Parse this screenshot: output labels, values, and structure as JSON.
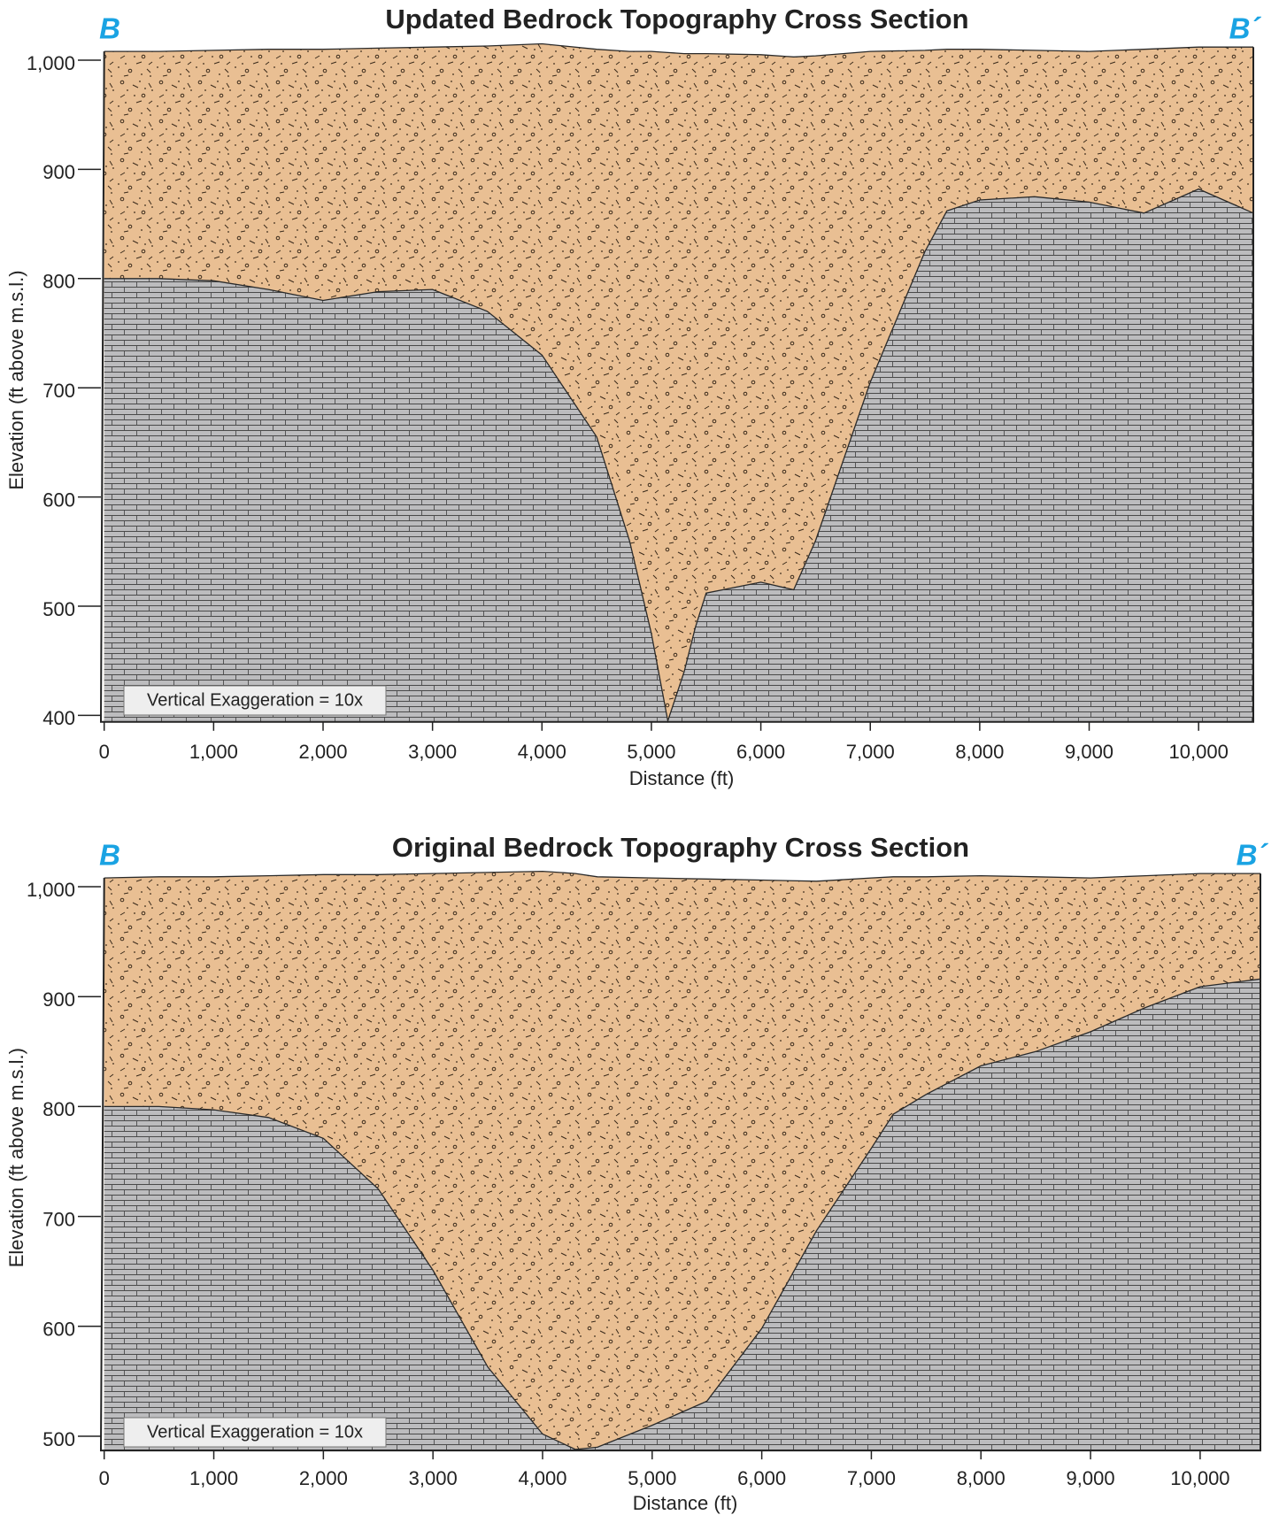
{
  "chart_data": [
    {
      "type": "cross-section",
      "title": "Updated Bedrock Topography Cross Section",
      "left_label": "B",
      "right_label": "B´",
      "annotation": "Vertical Exaggeration = 10x",
      "xlabel": "Distance (ft)",
      "ylabel": "Elevation (ft above m.s.l.)",
      "x": [
        0,
        500,
        1000,
        1500,
        2000,
        2500,
        3000,
        3500,
        4000,
        4500,
        4800,
        5000,
        5150,
        5300,
        5400,
        5500,
        6000,
        6300,
        6500,
        7000,
        7500,
        7700,
        8000,
        8500,
        9000,
        9500,
        10000,
        10500
      ],
      "series": [
        {
          "color": "#e9bf93",
          "values": [
            1008,
            1008,
            1009,
            1010,
            1010,
            1011,
            1012,
            1013,
            1015,
            1010,
            1008,
            1008,
            1007,
            1006,
            1006,
            1006,
            1005,
            1003,
            1004,
            1008,
            1009,
            1010,
            1010,
            1009,
            1008,
            1010,
            1012,
            1012
          ]
        },
        {
          "color": "#bcbcbe",
          "values": [
            800,
            800,
            798,
            790,
            780,
            788,
            790,
            770,
            730,
            655,
            560,
            475,
            395,
            440,
            480,
            512,
            522,
            515,
            560,
            705,
            825,
            862,
            872,
            875,
            870,
            860,
            882,
            860
          ]
        }
      ],
      "xlim": [
        -30,
        10500
      ],
      "ylim": [
        394,
        1020
      ],
      "xticks": [
        0,
        {
          "value": 1000,
          "label": "1,000"
        },
        {
          "value": 2000,
          "label": "2,000"
        },
        {
          "value": 3000,
          "label": "3,000"
        },
        {
          "value": 4000,
          "label": "4,000"
        },
        {
          "value": 5000,
          "label": "5,000"
        },
        {
          "value": 6000,
          "label": "6,000"
        },
        {
          "value": 7000,
          "label": "7,000"
        },
        {
          "value": 8000,
          "label": "8,000"
        },
        {
          "value": 9000,
          "label": "9,000"
        },
        {
          "value": 10000,
          "label": "10,000"
        }
      ],
      "yticks": [
        400,
        500,
        600,
        700,
        800,
        900,
        {
          "value": 1000,
          "label": "1,000"
        }
      ]
    },
    {
      "type": "cross-section",
      "title": "Original Bedrock Topography Cross Section",
      "left_label": "B",
      "right_label": "B´",
      "annotation": "Vertical Exaggeration = 10x",
      "xlabel": "Distance (ft)",
      "ylabel": "Elevation (ft above m.s.l.)",
      "x": [
        0,
        500,
        1000,
        1500,
        2000,
        2500,
        3000,
        3500,
        4000,
        4300,
        4500,
        5000,
        5500,
        6000,
        6500,
        7000,
        7200,
        7500,
        8000,
        8500,
        9000,
        9500,
        10000,
        10550
      ],
      "series": [
        {
          "color": "#e9bf93",
          "values": [
            1008,
            1009,
            1009,
            1010,
            1011,
            1011,
            1012,
            1013,
            1014,
            1012,
            1009,
            1008,
            1007,
            1006,
            1005,
            1008,
            1009,
            1009,
            1010,
            1009,
            1008,
            1010,
            1012,
            1012
          ]
        },
        {
          "color": "#bcbcbe",
          "values": [
            800,
            800,
            797,
            790,
            771,
            725,
            651,
            563,
            502,
            488,
            490,
            510,
            532,
            598,
            687,
            762,
            793,
            811,
            837,
            850,
            868,
            890,
            909,
            916
          ]
        }
      ],
      "xlim": [
        -30,
        10550
      ],
      "ylim": [
        487,
        1020
      ],
      "xticks": [
        0,
        {
          "value": 1000,
          "label": "1,000"
        },
        {
          "value": 2000,
          "label": "2,000"
        },
        {
          "value": 3000,
          "label": "3,000"
        },
        {
          "value": 4000,
          "label": "4,000"
        },
        {
          "value": 5000,
          "label": "5,000"
        },
        {
          "value": 6000,
          "label": "6,000"
        },
        {
          "value": 7000,
          "label": "7,000"
        },
        {
          "value": 8000,
          "label": "8,000"
        },
        {
          "value": 9000,
          "label": "9,000"
        },
        {
          "value": 10000,
          "label": "10,000"
        }
      ],
      "yticks": [
        500,
        600,
        700,
        800,
        900,
        {
          "value": 1000,
          "label": "1,000"
        }
      ]
    }
  ]
}
